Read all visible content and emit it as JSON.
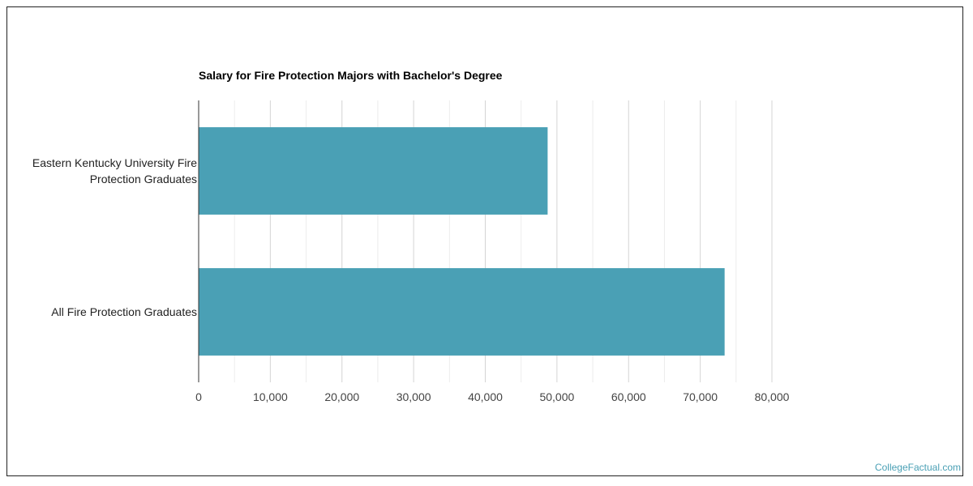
{
  "chart_data": {
    "type": "bar",
    "orientation": "horizontal",
    "title": "Salary for Fire Protection Majors with Bachelor's Degree",
    "categories": [
      "Eastern Kentucky University Fire Protection Graduates",
      "All Fire Protection Graduates"
    ],
    "category_lines": [
      [
        "Eastern Kentucky University Fire",
        "Protection Graduates"
      ],
      [
        "All Fire Protection Graduates"
      ]
    ],
    "values": [
      48700,
      73400
    ],
    "xlim": [
      0,
      80000
    ],
    "ticks": [
      0,
      10000,
      20000,
      30000,
      40000,
      50000,
      60000,
      70000,
      80000
    ],
    "tick_labels": [
      "0",
      "10,000",
      "20,000",
      "30,000",
      "40,000",
      "50,000",
      "60,000",
      "70,000",
      "80,000"
    ],
    "grid": true,
    "bar_color": "#4aa0b5",
    "grid_color": "#dddddd",
    "axis_color": "#333333"
  },
  "watermark": "CollegeFactual.com"
}
